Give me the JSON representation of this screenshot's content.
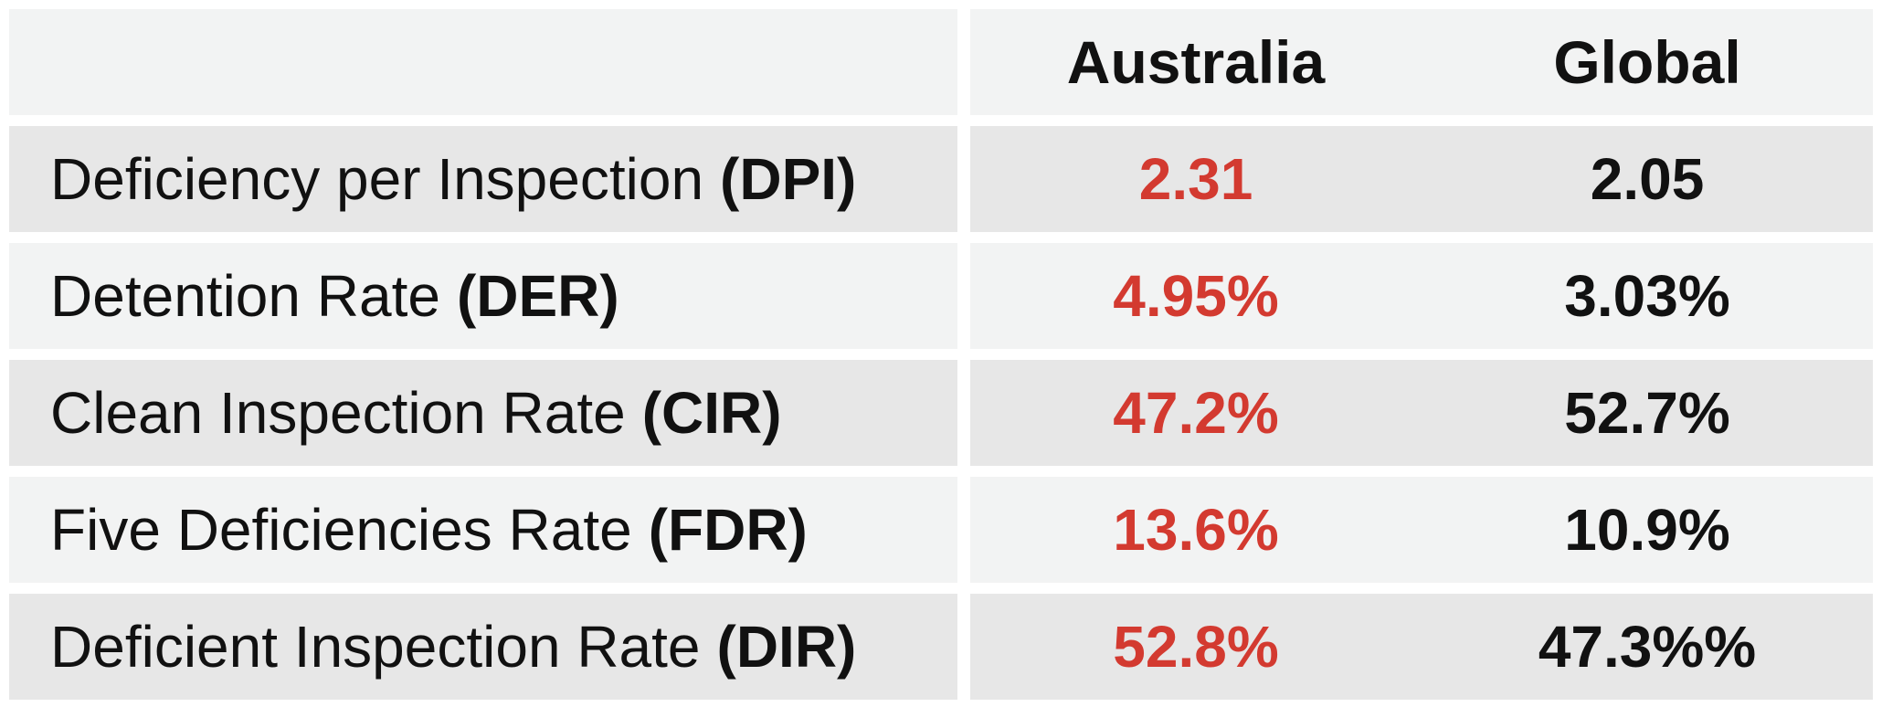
{
  "chart_data": {
    "type": "table",
    "columns": [
      "",
      "Australia",
      "Global"
    ],
    "rows": [
      {
        "label": "Deficiency per Inspection",
        "abbr": "(DPI)",
        "australia": "2.31",
        "global": "2.05"
      },
      {
        "label": "Detention Rate",
        "abbr": "(DER)",
        "australia": "4.95%",
        "global": "3.03%"
      },
      {
        "label": "Clean Inspection Rate",
        "abbr": "(CIR)",
        "australia": "47.2%",
        "global": "52.7%"
      },
      {
        "label": "Five Deficiencies Rate",
        "abbr": "(FDR)",
        "australia": "13.6%",
        "global": "10.9%"
      },
      {
        "label": "Deficient Inspection Rate",
        "abbr": "(DIR)",
        "australia": "52.8%",
        "global": "47.3%%"
      }
    ]
  },
  "colors": {
    "australia_value": "#d33a30",
    "global_value": "#111111",
    "label_text": "#111111",
    "row_dark": "#e7e7e7",
    "row_light": "#f2f3f3",
    "page_bg": "#ffffff"
  }
}
